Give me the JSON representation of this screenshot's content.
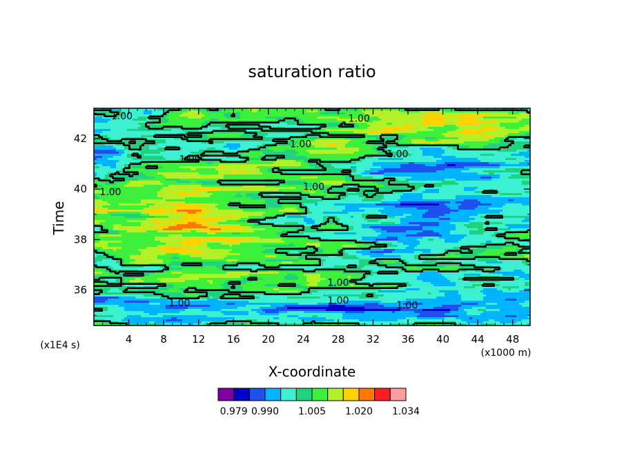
{
  "chart_data": {
    "type": "heatmap",
    "title": "saturation ratio",
    "xlabel": "X-coordinate",
    "ylabel": "Time",
    "x_unit": "(x1000 m)",
    "y_unit": "(x1E4 s)",
    "xlim": [
      0,
      50
    ],
    "ylim": [
      34.6,
      43.2
    ],
    "x_ticks": [
      4,
      8,
      12,
      16,
      20,
      24,
      28,
      32,
      36,
      40,
      44,
      48
    ],
    "y_ticks": [
      36,
      38,
      40,
      42
    ],
    "contour_level": 1.0,
    "contour_labels": [
      {
        "text": "1.00",
        "x": 3.2,
        "y": 42.9
      },
      {
        "text": "1.00",
        "x": 30.4,
        "y": 42.8
      },
      {
        "text": "1.00",
        "x": 23.7,
        "y": 41.8
      },
      {
        "text": "1.00",
        "x": 34.8,
        "y": 41.4
      },
      {
        "text": "1.00",
        "x": 11.0,
        "y": 41.2
      },
      {
        "text": "1.00",
        "x": 1.9,
        "y": 39.9
      },
      {
        "text": "1.00",
        "x": 25.2,
        "y": 40.1
      },
      {
        "text": "1.00",
        "x": 28.0,
        "y": 36.3
      },
      {
        "text": "1.00",
        "x": 28.0,
        "y": 35.6
      },
      {
        "text": "1.00",
        "x": 9.8,
        "y": 35.5
      },
      {
        "text": "1.00",
        "x": 35.9,
        "y": 35.4
      }
    ],
    "colorbar": {
      "colors": [
        "#7f00a0",
        "#0000c8",
        "#1e50f0",
        "#00b4ff",
        "#3cf0d2",
        "#1ed27e",
        "#3cf03c",
        "#b4f028",
        "#ffd200",
        "#ff7800",
        "#ff1e1e",
        "#ff9ea0"
      ],
      "labels": [
        "0.979",
        "0.990",
        "1.005",
        "1.020",
        "1.034"
      ]
    }
  }
}
